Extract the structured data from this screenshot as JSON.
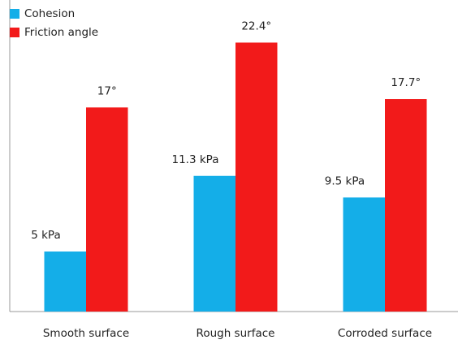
{
  "chart_data": {
    "type": "bar",
    "categories": [
      "Smooth surface",
      "Rough surface",
      "Corroded surface"
    ],
    "series": [
      {
        "name": "Cohesion",
        "color": "#14aee8",
        "values": [
          5,
          11.3,
          9.5
        ],
        "value_labels": [
          "5 kPa",
          "11.3 kPa",
          "9.5 kPa"
        ]
      },
      {
        "name": "Friction angle",
        "color": "#f21a1a",
        "values": [
          17,
          22.4,
          17.7
        ],
        "value_labels": [
          "17°",
          "22.4°",
          "17.7°"
        ]
      }
    ],
    "legend": "top-left"
  }
}
